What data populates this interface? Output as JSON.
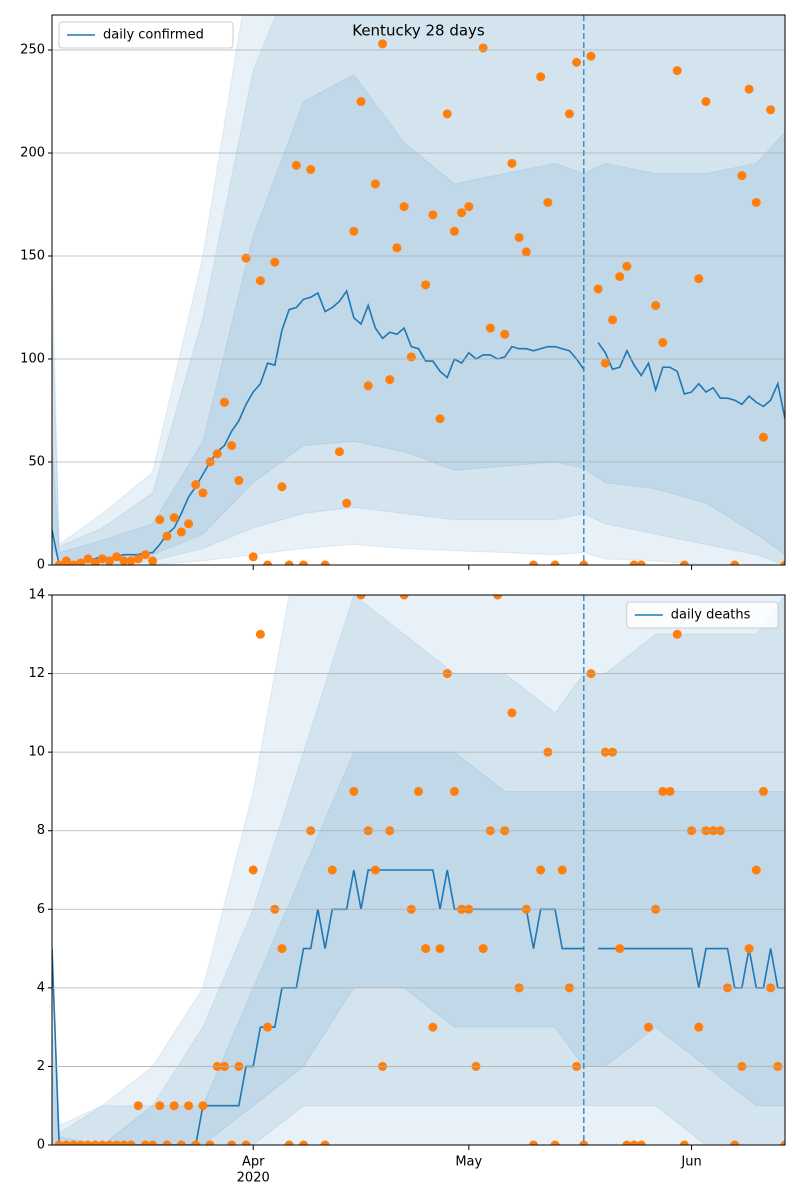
{
  "chart_data": [
    {
      "type": "line",
      "title": "Kentucky 28 days",
      "legend": "upper left",
      "grid": true,
      "vline": 74,
      "xlim": [
        0,
        102
      ],
      "ylim": [
        0,
        267
      ],
      "yticks": [
        0,
        50,
        100,
        150,
        200,
        250
      ],
      "x": [
        0,
        1,
        2,
        3,
        4,
        5,
        6,
        7,
        8,
        9,
        10,
        11,
        12,
        13,
        14,
        15,
        16,
        17,
        18,
        19,
        20,
        21,
        22,
        23,
        24,
        25,
        26,
        27,
        28,
        29,
        30,
        31,
        32,
        33,
        34,
        35,
        36,
        37,
        38,
        39,
        40,
        41,
        42,
        43,
        44,
        45,
        46,
        47,
        48,
        49,
        50,
        51,
        52,
        53,
        54,
        55,
        56,
        57,
        58,
        59,
        60,
        61,
        62,
        63,
        64,
        65,
        66,
        67,
        68,
        69,
        70,
        71,
        72,
        73,
        74,
        75,
        76,
        77,
        78,
        79,
        80,
        81,
        82,
        83,
        84,
        85,
        86,
        87,
        88,
        89,
        90,
        91,
        92,
        93,
        94,
        95,
        96,
        97,
        98,
        99,
        100,
        101,
        102
      ],
      "series": [
        {
          "name": "daily confirmed",
          "color": "#1f77b4",
          "values": [
            17,
            0,
            1,
            1,
            2,
            2,
            3,
            4,
            3,
            4,
            5,
            5,
            5,
            6,
            6,
            10,
            15,
            18,
            25,
            33,
            38,
            44,
            50,
            55,
            58,
            65,
            70,
            78,
            84,
            88,
            98,
            97,
            114,
            124,
            125,
            129,
            130,
            132,
            123,
            125,
            128,
            133,
            120,
            117,
            126,
            115,
            110,
            113,
            112,
            115,
            106,
            105,
            99,
            99,
            94,
            91,
            100,
            98,
            103,
            100,
            102,
            102,
            100,
            101,
            106,
            105,
            105,
            104,
            105,
            106,
            106,
            105,
            104,
            100,
            95,
            null,
            108,
            103,
            95,
            96,
            104,
            97,
            92,
            98,
            85,
            96,
            96,
            94,
            83,
            84,
            88,
            84,
            86,
            81,
            81,
            80,
            78,
            82,
            79,
            77,
            80,
            88,
            71
          ]
        }
      ],
      "observed": {
        "color": "#ff7f0e",
        "values": [
          null,
          0,
          2,
          0,
          1,
          3,
          1,
          3,
          2,
          4,
          2,
          2,
          3,
          5,
          2,
          22,
          14,
          23,
          16,
          20,
          39,
          35,
          50,
          54,
          79,
          58,
          41,
          149,
          4,
          138,
          0,
          147,
          38,
          0,
          194,
          0,
          192,
          null,
          0,
          null,
          55,
          30,
          162,
          225,
          87,
          185,
          253,
          90,
          154,
          174,
          101,
          null,
          136,
          170,
          71,
          219,
          162,
          171,
          174,
          null,
          251,
          115,
          null,
          112,
          195,
          159,
          152,
          0,
          237,
          176,
          0,
          null,
          219,
          244,
          0,
          247,
          134,
          98,
          119,
          140,
          145,
          0,
          0,
          null,
          126,
          108,
          null,
          240,
          0,
          null,
          139,
          225,
          null,
          null,
          null,
          0,
          189,
          231,
          176,
          62,
          221,
          null,
          0
        ]
      },
      "band_x": [
        0,
        1,
        7,
        14,
        21,
        28,
        35,
        42,
        49,
        56,
        63,
        70,
        74,
        77,
        84,
        91,
        98,
        102
      ],
      "bands": [
        {
          "color": "#1f77b4",
          "upper": [
            150,
            10,
            25,
            45,
            150,
            300,
            300,
            300,
            300,
            300,
            300,
            300,
            300,
            300,
            300,
            300,
            300,
            300
          ],
          "lower": [
            0,
            0,
            0,
            0,
            2,
            5,
            8,
            10,
            8,
            7,
            6,
            5,
            6,
            3,
            2,
            0,
            0,
            0
          ]
        },
        {
          "color": "#1f77b4",
          "upper": [
            120,
            9,
            18,
            35,
            120,
            240,
            300,
            300,
            300,
            300,
            300,
            300,
            300,
            300,
            300,
            300,
            300,
            300
          ],
          "lower": [
            0,
            0,
            0,
            2,
            8,
            18,
            25,
            28,
            25,
            22,
            22,
            22,
            25,
            20,
            15,
            10,
            5,
            0
          ]
        },
        {
          "color": "#1f77b4",
          "upper": [
            60,
            6,
            12,
            20,
            60,
            160,
            225,
            238,
            205,
            185,
            190,
            195,
            190,
            195,
            190,
            190,
            195,
            210
          ],
          "lower": [
            10,
            1,
            2,
            5,
            15,
            40,
            58,
            60,
            55,
            46,
            48,
            50,
            47,
            40,
            37,
            30,
            15,
            5
          ]
        }
      ]
    },
    {
      "type": "line",
      "legend": "upper right",
      "grid": true,
      "vline": 74,
      "xlim": [
        0,
        102
      ],
      "ylim": [
        0,
        14
      ],
      "yticks": [
        0,
        2,
        4,
        6,
        8,
        10,
        12,
        14
      ],
      "xticks": [
        {
          "value": 28,
          "label": "Apr"
        },
        {
          "value": 58,
          "label": "May"
        },
        {
          "value": 89,
          "label": "Jun"
        }
      ],
      "x_offset_label": "2020",
      "x": [
        0,
        1,
        2,
        3,
        4,
        5,
        6,
        7,
        8,
        9,
        10,
        11,
        12,
        13,
        14,
        15,
        16,
        17,
        18,
        19,
        20,
        21,
        22,
        23,
        24,
        25,
        26,
        27,
        28,
        29,
        30,
        31,
        32,
        33,
        34,
        35,
        36,
        37,
        38,
        39,
        40,
        41,
        42,
        43,
        44,
        45,
        46,
        47,
        48,
        49,
        50,
        51,
        52,
        53,
        54,
        55,
        56,
        57,
        58,
        59,
        60,
        61,
        62,
        63,
        64,
        65,
        66,
        67,
        68,
        69,
        70,
        71,
        72,
        73,
        74,
        75,
        76,
        77,
        78,
        79,
        80,
        81,
        82,
        83,
        84,
        85,
        86,
        87,
        88,
        89,
        90,
        91,
        92,
        93,
        94,
        95,
        96,
        97,
        98,
        99,
        100,
        101,
        102
      ],
      "series": [
        {
          "name": "daily deaths",
          "color": "#1f77b4",
          "values": [
            5,
            0,
            0,
            0,
            0,
            0,
            0,
            0,
            0,
            0,
            0,
            0,
            0,
            0,
            0,
            0,
            0,
            0,
            0,
            0,
            0,
            1,
            1,
            1,
            1,
            1,
            1,
            2,
            2,
            3,
            3,
            3,
            4,
            4,
            4,
            5,
            5,
            6,
            5,
            6,
            6,
            6,
            7,
            6,
            7,
            7,
            7,
            7,
            7,
            7,
            7,
            7,
            7,
            7,
            6,
            7,
            6,
            6,
            6,
            6,
            6,
            6,
            6,
            6,
            6,
            6,
            6,
            5,
            6,
            6,
            6,
            5,
            5,
            5,
            5,
            null,
            5,
            5,
            5,
            5,
            5,
            5,
            5,
            5,
            5,
            5,
            5,
            5,
            5,
            5,
            4,
            5,
            5,
            5,
            5,
            4,
            4,
            5,
            4,
            4,
            5,
            4,
            4
          ]
        }
      ],
      "observed": {
        "color": "#ff7f0e",
        "values": [
          null,
          0,
          0,
          0,
          0,
          0,
          0,
          0,
          0,
          0,
          0,
          0,
          1,
          0,
          0,
          1,
          0,
          1,
          0,
          1,
          0,
          1,
          0,
          2,
          2,
          0,
          2,
          0,
          7,
          13,
          3,
          6,
          5,
          0,
          null,
          0,
          8,
          null,
          0,
          7,
          null,
          null,
          9,
          14,
          8,
          7,
          2,
          8,
          null,
          14,
          6,
          9,
          5,
          3,
          5,
          12,
          9,
          6,
          6,
          2,
          5,
          8,
          14,
          8,
          11,
          4,
          6,
          0,
          7,
          10,
          0,
          7,
          4,
          2,
          0,
          12,
          null,
          10,
          10,
          5,
          0,
          0,
          0,
          3,
          6,
          9,
          9,
          13,
          0,
          8,
          3,
          8,
          8,
          8,
          4,
          0,
          2,
          5,
          7,
          9,
          4,
          2,
          0
        ]
      },
      "band_x": [
        0,
        1,
        7,
        14,
        21,
        28,
        35,
        42,
        49,
        56,
        63,
        70,
        74,
        77,
        84,
        91,
        98,
        102
      ],
      "bands": [
        {
          "color": "#1f77b4",
          "upper": [
            5,
            0.5,
            1,
            2,
            4,
            9,
            16,
            16,
            16,
            16,
            16,
            16,
            16,
            16,
            16,
            16,
            16,
            16
          ],
          "lower": [
            0,
            0,
            0,
            0,
            0,
            0,
            0,
            0,
            0,
            0,
            0,
            0,
            0,
            0,
            0,
            0,
            0,
            0
          ]
        },
        {
          "color": "#1f77b4",
          "upper": [
            3,
            0.3,
            1,
            1,
            3,
            6,
            10,
            14,
            13,
            12,
            12,
            11,
            12,
            12,
            13,
            13,
            13,
            14
          ],
          "lower": [
            0,
            0,
            0,
            0,
            0,
            0,
            1,
            1,
            1,
            1,
            1,
            1,
            1,
            1,
            1,
            0,
            0,
            0
          ]
        },
        {
          "color": "#1f77b4",
          "upper": [
            2,
            0.2,
            0,
            1,
            1,
            4,
            7,
            10,
            10,
            10,
            9,
            9,
            9,
            9,
            9,
            9,
            9,
            9
          ],
          "lower": [
            0,
            0,
            0,
            0,
            0,
            1,
            2,
            4,
            4,
            3,
            3,
            3,
            2,
            2,
            3,
            2,
            1,
            1
          ]
        }
      ]
    }
  ]
}
